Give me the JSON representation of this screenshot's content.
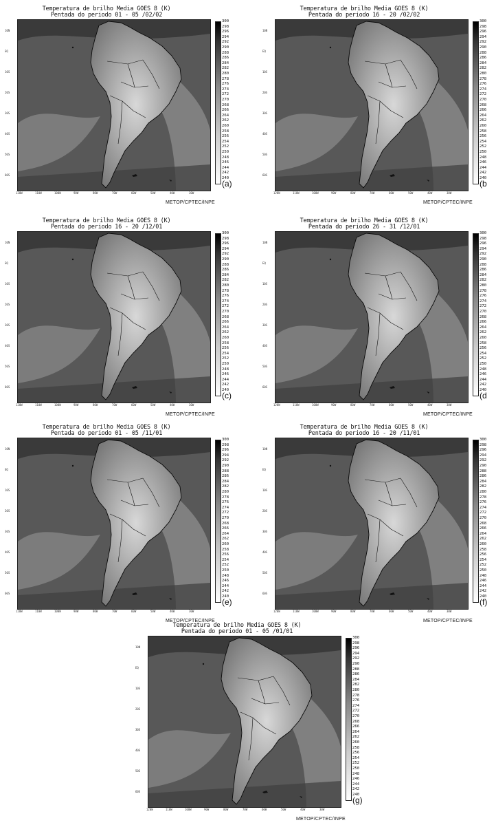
{
  "panels": [
    {
      "id": "a",
      "title1": "Temperatura de brilho Media  GOES 8 (K)",
      "title2": "Pentada do periodo 01 - 05 /02/02",
      "label": "(a)",
      "credit": "METOP/CPTEC/INPE"
    },
    {
      "id": "b",
      "title1": "Temperatura de brilho Media  GOES 8 (K)",
      "title2": "Pentada do periodo 16 - 20 /02/02",
      "label": "(b",
      "credit": "METOP/CPTEC/INPE"
    },
    {
      "id": "c",
      "title1": "Temperatura de brilho Media  GOES 8 (K)",
      "title2": "Pentada do periodo 16 - 20 /12/01",
      "label": "(c)",
      "credit": "METOP/CPTEC/INPE"
    },
    {
      "id": "d",
      "title1": "Temperatura de brilho Media  GOES 8 (K)",
      "title2": "Pentada do periodo 26 - 31 /12/01",
      "label": "(d",
      "credit": "METOP/CPTEC/INPE"
    },
    {
      "id": "e",
      "title1": "Temperatura de brilho Media  GOES 8 (K)",
      "title2": "Pentada do periodo 01 - 05 /11/01",
      "label": "(e)",
      "credit": "METOP/CPTEC/INPE"
    },
    {
      "id": "f",
      "title1": "Temperatura de brilho Media  GOES 8 (K)",
      "title2": "Pentada do periodo 16 - 20 /11/01",
      "label": "(f)",
      "credit": "METOP/CPTEC/INPE"
    },
    {
      "id": "g",
      "title1": "Temperatura de brilho Media  GOES 8 (K)",
      "title2": "Pentada do periodo 01 - 05 /01/01",
      "label": "(g)",
      "credit": "METOP/CPTEC/INPE"
    }
  ],
  "colorbar_ticks": [
    "300",
    "298",
    "296",
    "294",
    "292",
    "290",
    "288",
    "286",
    "284",
    "282",
    "280",
    "278",
    "276",
    "274",
    "272",
    "270",
    "268",
    "266",
    "264",
    "262",
    "260",
    "258",
    "256",
    "254",
    "252",
    "250",
    "248",
    "246",
    "244",
    "242",
    "240"
  ],
  "lat_labels": [
    "10N",
    "EQ",
    "10S",
    "20S",
    "30S",
    "40S",
    "50S",
    "60S"
  ],
  "lon_labels": [
    "120W",
    "110W",
    "100W",
    "90W",
    "80W",
    "70W",
    "60W",
    "50W",
    "40W",
    "30W"
  ]
}
